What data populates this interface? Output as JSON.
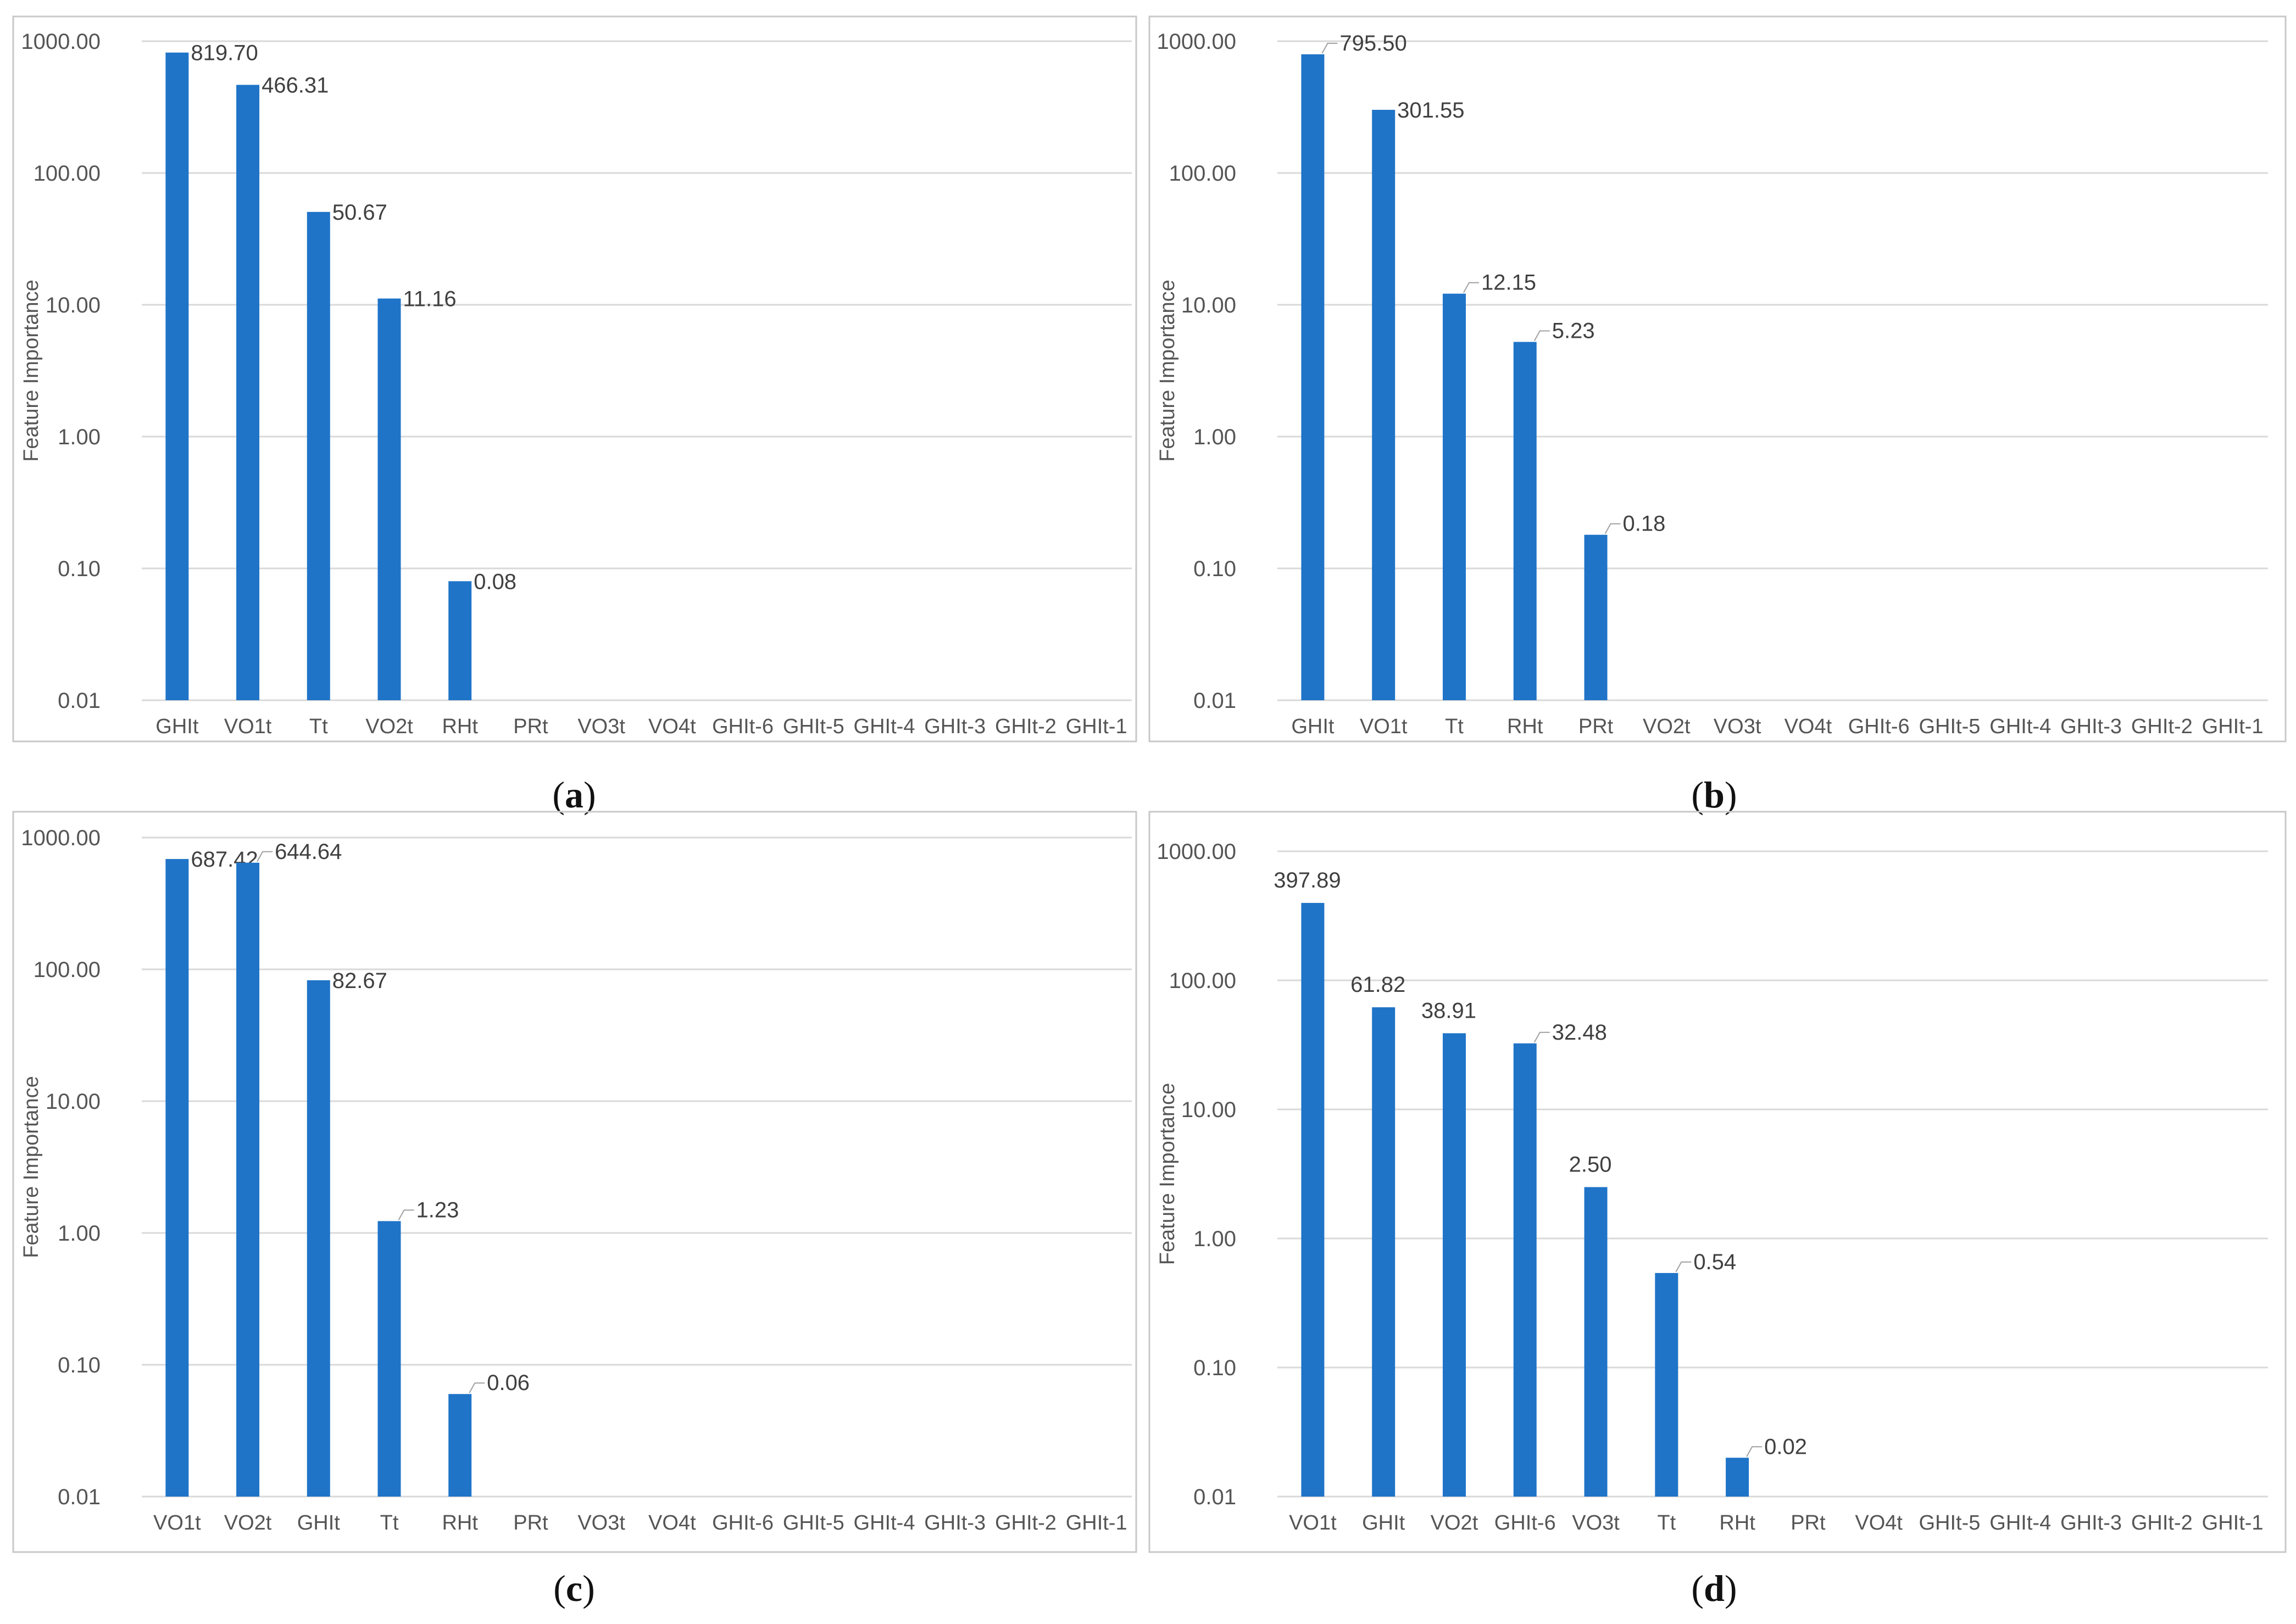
{
  "chart_data": [
    {
      "type": "bar",
      "panel": "a",
      "y_scale": "log",
      "ylim": [
        0.01,
        1000
      ],
      "ylabel": "Feature Importance",
      "yticks": [
        "0.01",
        "0.10",
        "1.00",
        "10.00",
        "100.00",
        "1000.00"
      ],
      "categories": [
        "GHIt",
        "VO1t",
        "Tt",
        "VO2t",
        "RHt",
        "PRt",
        "VO3t",
        "VO4t",
        "GHIt-6",
        "GHIt-5",
        "GHIt-4",
        "GHIt-3",
        "GHIt-2",
        "GHIt-1"
      ],
      "values": [
        819.7,
        466.31,
        50.67,
        11.16,
        0.08,
        null,
        null,
        null,
        null,
        null,
        null,
        null,
        null,
        null
      ],
      "labels": [
        "819.70",
        "466.31",
        "50.67",
        "11.16",
        "0.08",
        "",
        "",
        "",
        "",
        "",
        "",
        "",
        "",
        ""
      ],
      "leaders": [
        false,
        false,
        false,
        false,
        false,
        false,
        false,
        false,
        false,
        false,
        false,
        false,
        false,
        false
      ],
      "caption": "a"
    },
    {
      "type": "bar",
      "panel": "b",
      "y_scale": "log",
      "ylim": [
        0.01,
        1000
      ],
      "ylabel": "Feature Importance",
      "yticks": [
        "0.01",
        "0.10",
        "1.00",
        "10.00",
        "100.00",
        "1000.00"
      ],
      "categories": [
        "GHIt",
        "VO1t",
        "Tt",
        "RHt",
        "PRt",
        "VO2t",
        "VO3t",
        "VO4t",
        "GHIt-6",
        "GHIt-5",
        "GHIt-4",
        "GHIt-3",
        "GHIt-2",
        "GHIt-1"
      ],
      "values": [
        795.5,
        301.55,
        12.15,
        5.23,
        0.18,
        null,
        null,
        null,
        null,
        null,
        null,
        null,
        null,
        null
      ],
      "labels": [
        "795.50",
        "301.55",
        "12.15",
        "5.23",
        "0.18",
        "",
        "",
        "",
        "",
        "",
        "",
        "",
        "",
        ""
      ],
      "leaders": [
        true,
        false,
        true,
        true,
        true,
        false,
        false,
        false,
        false,
        false,
        false,
        false,
        false,
        false
      ],
      "caption": "b"
    },
    {
      "type": "bar",
      "panel": "c",
      "y_scale": "log",
      "ylim": [
        0.01,
        1000
      ],
      "ylabel": "Feature Importance",
      "yticks": [
        "0.01",
        "0.10",
        "1.00",
        "10.00",
        "100.00",
        "1000.00"
      ],
      "categories": [
        "VO1t",
        "VO2t",
        "GHIt",
        "Tt",
        "RHt",
        "PRt",
        "VO3t",
        "VO4t",
        "GHIt-6",
        "GHIt-5",
        "GHIt-4",
        "GHIt-3",
        "GHIt-2",
        "GHIt-1"
      ],
      "values": [
        687.42,
        644.64,
        82.67,
        1.23,
        0.06,
        null,
        null,
        null,
        null,
        null,
        null,
        null,
        null,
        null
      ],
      "labels": [
        "687.42",
        "644.64",
        "82.67",
        "1.23",
        "0.06",
        "",
        "",
        "",
        "",
        "",
        "",
        "",
        "",
        ""
      ],
      "leaders": [
        false,
        true,
        false,
        true,
        true,
        false,
        false,
        false,
        false,
        false,
        false,
        false,
        false,
        false
      ],
      "caption": "c"
    },
    {
      "type": "bar",
      "panel": "d",
      "y_scale": "log",
      "ylim": [
        0.01,
        1000
      ],
      "ylabel": "Feature Importance",
      "yticks": [
        "0.01",
        "0.10",
        "1.00",
        "10.00",
        "100.00",
        "1000.00"
      ],
      "categories": [
        "VO1t",
        "GHIt",
        "VO2t",
        "GHIt-6",
        "VO3t",
        "Tt",
        "RHt",
        "PRt",
        "VO4t",
        "GHIt-5",
        "GHIt-4",
        "GHIt-3",
        "GHIt-2",
        "GHIt-1"
      ],
      "values": [
        397.89,
        61.82,
        38.91,
        32.48,
        2.5,
        0.54,
        0.02,
        null,
        null,
        null,
        null,
        null,
        null,
        null
      ],
      "labels": [
        "397.89",
        "61.82",
        "38.91",
        "32.48",
        "2.50",
        "0.54",
        "0.02",
        "",
        "",
        "",
        "",
        "",
        "",
        ""
      ],
      "leaders": [
        false,
        false,
        false,
        true,
        false,
        true,
        true,
        false,
        false,
        false,
        false,
        false,
        false,
        false
      ],
      "caption": "d"
    }
  ],
  "colors": {
    "bar": "#1f74c8",
    "grid": "#d9d9d9",
    "border": "#c8c8c8",
    "tick_text": "#555555",
    "label_text": "#404040"
  }
}
